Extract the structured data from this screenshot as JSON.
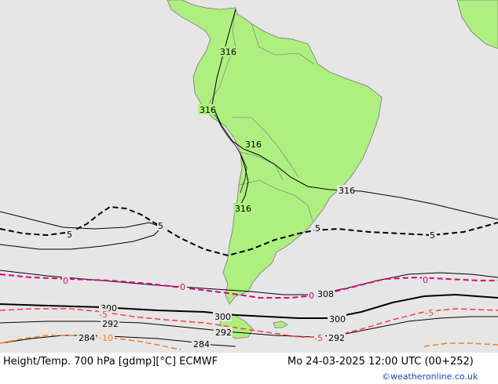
{
  "title": "Height/Temp. 700 hPa [gdmp][°C] ECMWF",
  "datetime": "Mo 24-03-2025 12:00 UTC (00+252)",
  "credit": "©weatheronline.co.uk",
  "colors": {
    "ocean": "#e6e6e6",
    "land": "#aef07f",
    "coast": "#8a8a8a",
    "height_contour": "#000000",
    "temp_0": "#e0007a",
    "temp_minus5": "#ff3b3b",
    "temp_minus10": "#ff7a1a",
    "credit_text": "#1e3fbf"
  },
  "contour_labels": {
    "h316": "316",
    "h308": "308",
    "h300": "300",
    "h292": "292",
    "h284": "284",
    "t5": "5",
    "t0": "0",
    "tm5": "-5",
    "tm10": "-10"
  }
}
